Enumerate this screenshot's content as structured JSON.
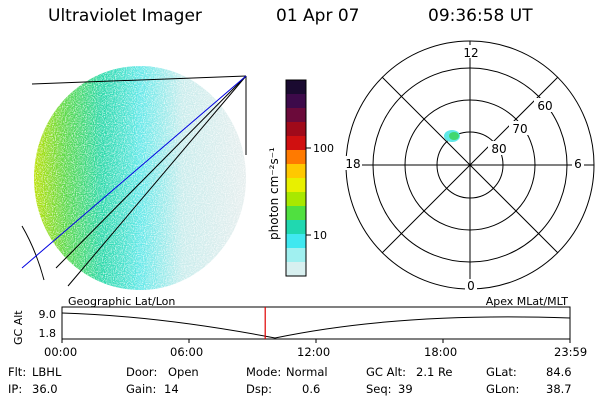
{
  "header": {
    "title": "Ultraviolet Imager",
    "date": "01 Apr 07",
    "time": "09:36:58 UT"
  },
  "colorbar": {
    "unit": "photon cm⁻²s⁻¹",
    "ticks": [
      "100",
      "10"
    ],
    "colors": [
      "#1a0a30",
      "#3d0a4a",
      "#6b0a3a",
      "#a00a1a",
      "#d01010",
      "#ff7a00",
      "#ffc800",
      "#e8f000",
      "#a8e800",
      "#50e040",
      "#20d8b0",
      "#40e8f0",
      "#a0f0f0",
      "#d8f0f0"
    ]
  },
  "polar": {
    "top_label": "12",
    "bottom_label": "0",
    "left_label": "18",
    "right_label": "6",
    "lat_labels": [
      "60",
      "70",
      "80"
    ]
  },
  "timeline": {
    "ylabel": "GC Alt",
    "yticks": [
      "9.0",
      "1.8"
    ],
    "left_title": "Geographic Lat/Lon",
    "right_title": "Apex MLat/MLT",
    "xticks": [
      "00:00",
      "06:00",
      "12:00",
      "18:00",
      "23:59"
    ],
    "marker_time_hours": 9.6
  },
  "info": {
    "row1": [
      {
        "label": "Flt:",
        "value": "LBHL"
      },
      {
        "label": "Door:",
        "value": "Open"
      },
      {
        "label": "Mode:",
        "value": "Normal"
      },
      {
        "label": "GC Alt:",
        "value": "2.1 Re"
      },
      {
        "label": "GLat:",
        "value": "84.6"
      }
    ],
    "row2": [
      {
        "label": "IP:",
        "value": "36.0"
      },
      {
        "label": "Gain:",
        "value": "14"
      },
      {
        "label": "Dsp:",
        "value": "0.6"
      },
      {
        "label": "Seq:",
        "value": "39"
      },
      {
        "label": "GLon:",
        "value": "38.7"
      }
    ]
  }
}
